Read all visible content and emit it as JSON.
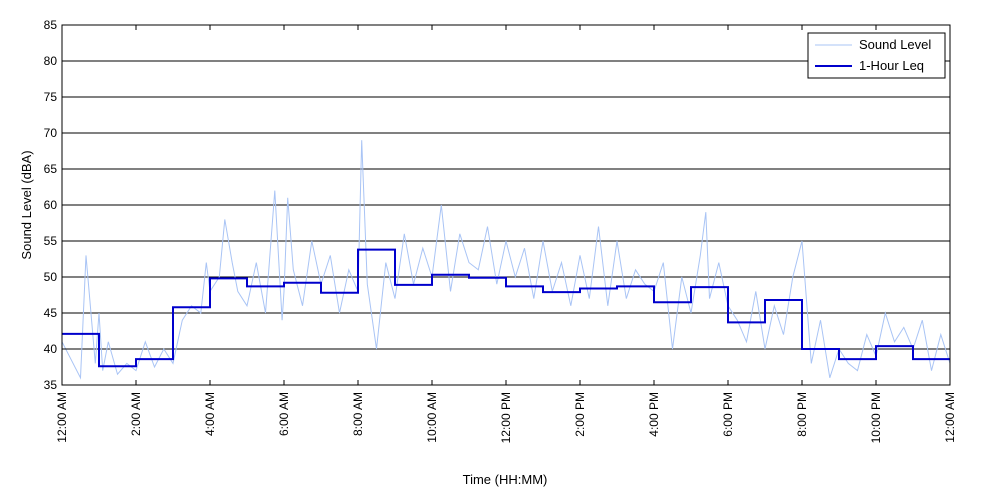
{
  "chart_data": {
    "type": "line",
    "xlabel": "Time (HH:MM)",
    "ylabel": "Sound Level (dBA)",
    "xlim": [
      0,
      24
    ],
    "ylim": [
      35,
      85
    ],
    "yticks": [
      35,
      40,
      45,
      50,
      55,
      60,
      65,
      70,
      75,
      80,
      85
    ],
    "xticks": [
      0,
      2,
      4,
      6,
      8,
      10,
      12,
      14,
      16,
      18,
      20,
      22,
      24
    ],
    "xtick_labels": [
      "12:00 AM",
      "2:00 AM",
      "4:00 AM",
      "6:00 AM",
      "8:00 AM",
      "10:00 AM",
      "12:00 PM",
      "2:00 PM",
      "4:00 PM",
      "6:00 PM",
      "8:00 PM",
      "10:00 PM",
      "12:00 AM"
    ],
    "grid": "horizontal",
    "legend_position": "top-right",
    "series": [
      {
        "name": "Sound Level",
        "color": "#a9c4f5",
        "hours": [
          0,
          0.5,
          0.65,
          0.9,
          1,
          1.1,
          1.25,
          1.5,
          1.75,
          2,
          2.25,
          2.5,
          2.75,
          3,
          3.25,
          3.5,
          3.75,
          3.9,
          4,
          4.25,
          4.4,
          4.6,
          4.75,
          5,
          5.25,
          5.5,
          5.75,
          5.95,
          6,
          6.1,
          6.25,
          6.5,
          6.75,
          7,
          7.25,
          7.5,
          7.75,
          8,
          8.1,
          8.25,
          8.5,
          8.75,
          9,
          9.25,
          9.5,
          9.75,
          10,
          10.25,
          10.5,
          10.75,
          11,
          11.25,
          11.5,
          11.75,
          12,
          12.25,
          12.5,
          12.75,
          13,
          13.25,
          13.5,
          13.75,
          14,
          14.25,
          14.5,
          14.75,
          15,
          15.25,
          15.5,
          15.75,
          16,
          16.25,
          16.5,
          16.75,
          17,
          17.25,
          17.4,
          17.5,
          17.75,
          18,
          18.25,
          18.5,
          18.75,
          19,
          19.25,
          19.5,
          19.75,
          20,
          20.25,
          20.5,
          20.75,
          21,
          21.25,
          21.5,
          21.75,
          22,
          22.25,
          22.5,
          22.75,
          23,
          23.25,
          23.5,
          23.75,
          24
        ],
        "values": [
          41,
          36,
          53,
          38,
          45,
          37,
          41,
          36.5,
          38,
          37,
          41,
          37.5,
          40,
          38,
          44,
          46,
          45,
          52,
          48,
          50,
          58,
          52,
          48,
          46,
          52,
          45,
          62,
          44,
          48,
          61,
          51,
          46,
          55,
          49,
          53,
          45,
          51,
          48,
          69,
          49,
          40,
          52,
          47,
          56,
          49,
          54,
          50,
          60,
          48,
          56,
          52,
          51,
          57,
          49,
          55,
          50,
          54,
          47,
          55,
          48,
          52,
          46,
          53,
          47,
          57,
          46,
          55,
          47,
          51,
          49,
          48,
          52,
          40,
          50,
          45,
          53,
          59,
          47,
          52,
          46,
          44,
          41,
          48,
          40,
          46,
          42,
          50,
          55,
          38,
          44,
          36,
          40,
          38,
          37,
          42,
          39,
          45,
          41,
          43,
          40,
          44,
          37,
          42,
          38
        ]
      },
      {
        "name": "1-Hour Leq",
        "color": "#0000cc",
        "step": true,
        "hours": [
          0,
          1,
          2,
          3,
          4,
          5,
          6,
          7,
          8,
          9,
          10,
          11,
          12,
          13,
          14,
          15,
          16,
          17,
          18,
          19,
          20,
          21,
          22,
          23
        ],
        "values": [
          42.1,
          37.6,
          38.6,
          45.8,
          49.8,
          48.7,
          49.2,
          47.8,
          53.8,
          48.9,
          50.3,
          49.9,
          48.7,
          47.9,
          48.4,
          48.7,
          46.5,
          48.6,
          43.7,
          46.8,
          40.0,
          38.6,
          40.4,
          38.6
        ]
      }
    ]
  }
}
